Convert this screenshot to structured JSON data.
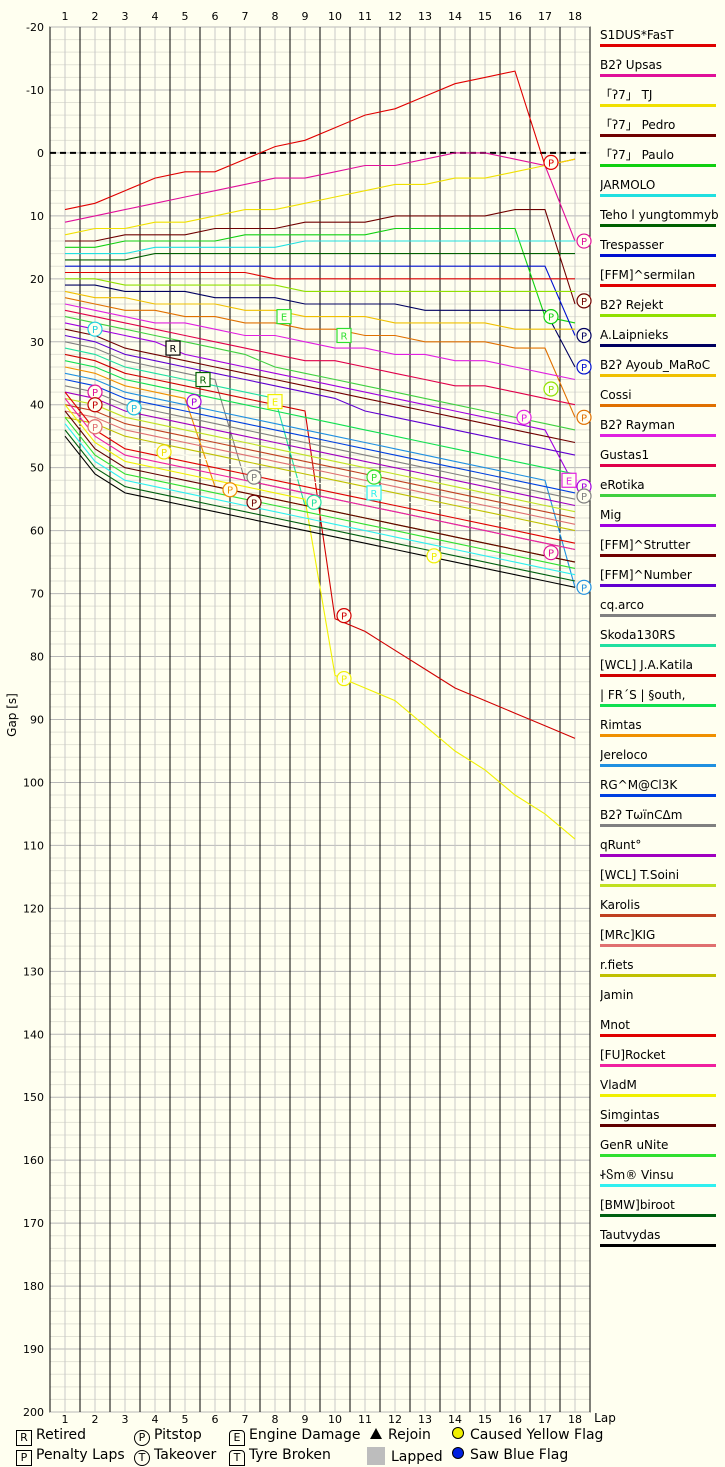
{
  "chart_data": {
    "type": "line",
    "title": "",
    "xlabel": "Lap",
    "ylabel": "Gap [s]",
    "xlim": [
      1,
      18
    ],
    "ylim": [
      -20,
      200
    ],
    "x_ticks": [
      "1",
      "2",
      "3",
      "4",
      "5",
      "6",
      "7",
      "8",
      "9",
      "10",
      "11",
      "12",
      "13",
      "14",
      "15",
      "16",
      "17",
      "18"
    ],
    "y_ticks": [
      "-20",
      "-10",
      "0",
      "10",
      "20",
      "30",
      "40",
      "50",
      "60",
      "70",
      "80",
      "90",
      "100",
      "110",
      "120",
      "130",
      "140",
      "150",
      "160",
      "170",
      "180",
      "190",
      "200"
    ],
    "series": [
      {
        "name": "S1DUS*FasT",
        "color": "#e00000",
        "values": [
          9,
          8,
          6,
          4,
          3,
          3,
          1,
          -1,
          -2,
          -4,
          -6,
          -7,
          -9,
          -11,
          -12,
          -13,
          2,
          1
        ]
      },
      {
        "name": "B2ʔ Upsas",
        "color": "#e0109a",
        "values": [
          11,
          10,
          9,
          8,
          7,
          6,
          5,
          4,
          4,
          3,
          2,
          2,
          1,
          0,
          0,
          1,
          2,
          14
        ]
      },
      {
        "name": "「ʔ7」 TJ",
        "color": "#f0e000",
        "values": [
          13,
          12,
          12,
          11,
          11,
          10,
          9,
          9,
          8,
          7,
          6,
          5,
          5,
          4,
          4,
          3,
          2,
          1
        ]
      },
      {
        "name": "「ʔ7」 Pedro",
        "color": "#700000",
        "values": [
          14,
          14,
          13,
          13,
          13,
          12,
          12,
          12,
          11,
          11,
          11,
          10,
          10,
          10,
          10,
          9,
          9,
          24
        ]
      },
      {
        "name": "「ʔ7」 Paulo",
        "color": "#10d010",
        "values": [
          15,
          15,
          14,
          14,
          14,
          14,
          13,
          13,
          13,
          13,
          13,
          12,
          12,
          12,
          12,
          12,
          26,
          27
        ]
      },
      {
        "name": "JARMOLO",
        "color": "#20e0e0",
        "values": [
          16,
          16,
          16,
          15,
          15,
          15,
          15,
          15,
          14,
          14,
          14,
          14,
          14,
          14,
          14,
          14,
          14,
          14
        ]
      },
      {
        "name": "Teho l yungtommyb",
        "color": "#006000",
        "values": [
          17,
          17,
          17,
          16,
          16,
          16,
          16,
          16,
          16,
          16,
          16,
          16,
          16,
          16,
          16,
          16,
          16,
          16
        ]
      },
      {
        "name": "Trespasser",
        "color": "#0010d0",
        "values": [
          18,
          18,
          18,
          18,
          18,
          18,
          18,
          18,
          18,
          18,
          18,
          18,
          18,
          18,
          18,
          18,
          18,
          29
        ]
      },
      {
        "name": "[FFM]^sermilan",
        "color": "#e00000",
        "values": [
          19,
          19,
          19,
          19,
          19,
          19,
          19,
          20,
          20,
          20,
          20,
          20,
          20,
          20,
          20,
          20,
          20,
          20
        ]
      },
      {
        "name": "B2ʔ Rejekt",
        "color": "#90e000",
        "values": [
          20,
          20,
          21,
          21,
          21,
          21,
          21,
          21,
          22,
          22,
          22,
          22,
          22,
          22,
          22,
          22,
          22,
          22
        ]
      },
      {
        "name": "A.Laipnieks",
        "color": "#000060",
        "values": [
          21,
          21,
          22,
          22,
          22,
          23,
          23,
          23,
          24,
          24,
          24,
          24,
          25,
          25,
          25,
          25,
          25,
          34
        ]
      },
      {
        "name": "B2ʔ Ayoub_MaRoC",
        "color": "#f0c000",
        "values": [
          22,
          23,
          23,
          24,
          24,
          24,
          25,
          25,
          26,
          26,
          26,
          27,
          27,
          27,
          27,
          28,
          28,
          28
        ]
      },
      {
        "name": "Cossi",
        "color": "#e07000",
        "values": [
          23,
          24,
          25,
          25,
          26,
          26,
          27,
          27,
          28,
          28,
          29,
          29,
          30,
          30,
          30,
          31,
          31,
          42
        ]
      },
      {
        "name": "B2ʔ Rayman",
        "color": "#e020e0",
        "values": [
          24,
          25,
          26,
          27,
          27,
          28,
          29,
          29,
          30,
          31,
          31,
          32,
          32,
          33,
          33,
          34,
          35,
          36
        ]
      },
      {
        "name": "Gustas1",
        "color": "#e0004a",
        "values": [
          25,
          26,
          27,
          28,
          29,
          30,
          31,
          32,
          33,
          33,
          34,
          35,
          36,
          37,
          37,
          38,
          39,
          40
        ]
      },
      {
        "name": "eRotika",
        "color": "#40d040",
        "values": [
          26,
          27,
          28,
          29,
          30,
          31,
          32,
          34,
          35,
          36,
          37,
          38,
          39,
          40,
          41,
          42,
          43,
          44
        ]
      },
      {
        "name": "Mig",
        "color": "#a000e0",
        "values": [
          27,
          28,
          29,
          30,
          32,
          33,
          34,
          35,
          36,
          37,
          38,
          39,
          40,
          41,
          42,
          43,
          44,
          53
        ]
      },
      {
        "name": "[FFM]^Strutter",
        "color": "#700000",
        "values": [
          28,
          29,
          31,
          32,
          33,
          34,
          35,
          36,
          37,
          38,
          39,
          40,
          41,
          42,
          43,
          44,
          45,
          46
        ]
      },
      {
        "name": "[FFM]^Number",
        "color": "#6000d0",
        "values": [
          29,
          30,
          32,
          33,
          34,
          35,
          36,
          37,
          38,
          39,
          41,
          42,
          43,
          44,
          45,
          46,
          47,
          48
        ]
      },
      {
        "name": "cq.arco",
        "color": "#808080",
        "values": [
          30,
          31,
          33,
          34,
          35,
          36,
          52,
          53,
          54,
          55,
          56,
          57,
          58,
          59,
          60,
          61,
          62,
          63
        ]
      },
      {
        "name": "Skoda130RS",
        "color": "#20e0a0",
        "values": [
          31,
          32,
          34,
          35,
          36,
          37,
          38,
          39,
          56,
          57,
          58,
          59,
          60,
          61,
          62,
          63,
          64,
          65
        ]
      },
      {
        "name": "[WCL] J.A.Katila",
        "color": "#d00000",
        "values": [
          32,
          33,
          35,
          36,
          37,
          38,
          39,
          40,
          41,
          74,
          76,
          79,
          82,
          85,
          87,
          89,
          91,
          93
        ]
      },
      {
        "name": "| FR´S | §outh,",
        "color": "#10e050",
        "values": [
          33,
          34,
          36,
          37,
          38,
          39,
          40,
          41,
          42,
          43,
          44,
          45,
          46,
          47,
          48,
          49,
          50,
          51
        ]
      },
      {
        "name": "Rimtas",
        "color": "#f09000",
        "values": [
          34,
          35,
          37,
          38,
          39,
          53,
          54,
          55,
          56,
          57,
          58,
          59,
          60,
          61,
          62,
          63,
          64,
          65
        ]
      },
      {
        "name": "Jereloco",
        "color": "#2090e0",
        "values": [
          35,
          36,
          38,
          39,
          40,
          41,
          42,
          43,
          44,
          45,
          46,
          47,
          48,
          49,
          50,
          51,
          52,
          69
        ]
      },
      {
        "name": "RG^M@Cl3K",
        "color": "#0040e0",
        "values": [
          36,
          37,
          39,
          40,
          41,
          42,
          43,
          44,
          45,
          46,
          47,
          48,
          49,
          50,
          51,
          52,
          53,
          54
        ]
      },
      {
        "name": "B2ʔ TωїnCΔm",
        "color": "#808080",
        "values": [
          37,
          38,
          40,
          41,
          42,
          43,
          44,
          45,
          46,
          47,
          48,
          49,
          50,
          51,
          52,
          53,
          54,
          55
        ]
      },
      {
        "name": "qRunt°",
        "color": "#a000c0",
        "values": [
          38,
          39,
          41,
          42,
          43,
          44,
          45,
          46,
          47,
          48,
          49,
          50,
          51,
          52,
          53,
          54,
          55,
          56
        ]
      },
      {
        "name": "[WCL] T.Soini",
        "color": "#c0e020",
        "values": [
          39,
          40,
          42,
          43,
          44,
          45,
          46,
          47,
          48,
          49,
          50,
          51,
          52,
          53,
          54,
          55,
          56,
          57
        ]
      },
      {
        "name": "Karolis",
        "color": "#c04020",
        "values": [
          40,
          41,
          43,
          44,
          45,
          46,
          47,
          48,
          49,
          50,
          51,
          52,
          53,
          54,
          55,
          56,
          57,
          58
        ]
      },
      {
        "name": "[MRc]KIG",
        "color": "#e07070",
        "values": [
          41,
          42,
          44,
          45,
          46,
          47,
          48,
          49,
          50,
          51,
          52,
          53,
          54,
          55,
          56,
          57,
          58,
          59
        ]
      },
      {
        "name": "r.fiets",
        "color": "#c0c000",
        "values": [
          42,
          43,
          45,
          46,
          47,
          48,
          49,
          50,
          51,
          52,
          53,
          54,
          55,
          56,
          57,
          58,
          59,
          60
        ]
      },
      {
        "name": "Jamin",
        "color": "#fffff0",
        "values": [
          43,
          44,
          46,
          47,
          48,
          49,
          50,
          51,
          52,
          53,
          54,
          55,
          56,
          57,
          58,
          59,
          60,
          61
        ]
      },
      {
        "name": "Mnot",
        "color": "#e00000",
        "values": [
          38,
          44,
          47,
          48,
          49,
          50,
          51,
          52,
          53,
          54,
          55,
          56,
          57,
          58,
          59,
          60,
          61,
          62
        ]
      },
      {
        "name": "[FU]Rocket",
        "color": "#f020a0",
        "values": [
          39,
          45,
          48,
          49,
          50,
          51,
          52,
          53,
          54,
          55,
          56,
          57,
          58,
          59,
          60,
          61,
          62,
          63
        ]
      },
      {
        "name": "VladM",
        "color": "#f0f000",
        "values": [
          40,
          46,
          49,
          50,
          51,
          52,
          53,
          54,
          55,
          83,
          85,
          87,
          91,
          95,
          98,
          102,
          105,
          109
        ]
      },
      {
        "name": "Simgintas",
        "color": "#600000",
        "values": [
          41,
          47,
          50,
          51,
          52,
          53,
          54,
          55,
          56,
          57,
          58,
          59,
          60,
          61,
          62,
          63,
          64,
          65
        ]
      },
      {
        "name": "GenR uNite",
        "color": "#30e030",
        "values": [
          42,
          48,
          51,
          52,
          53,
          54,
          55,
          56,
          57,
          58,
          59,
          60,
          61,
          62,
          63,
          64,
          65,
          66
        ]
      },
      {
        "name": "ᏐႽm® Vinsu",
        "color": "#30f0f0",
        "values": [
          43,
          49,
          52,
          53,
          54,
          55,
          56,
          57,
          58,
          59,
          60,
          61,
          62,
          63,
          64,
          65,
          66,
          67
        ]
      },
      {
        "name": "[BMW]biroot",
        "color": "#006010",
        "values": [
          44,
          50,
          53,
          54,
          55,
          56,
          57,
          58,
          59,
          60,
          61,
          62,
          63,
          64,
          65,
          66,
          67,
          68
        ]
      },
      {
        "name": "Tautvydas",
        "color": "#000000",
        "values": [
          45,
          51,
          54,
          55,
          56,
          57,
          58,
          59,
          60,
          61,
          62,
          63,
          64,
          65,
          66,
          67,
          68,
          69
        ]
      }
    ],
    "markers": [
      {
        "type": "P",
        "lap": 2,
        "gap": 28,
        "color": "#20d0e0"
      },
      {
        "type": "P",
        "lap": 2,
        "gap": 38,
        "color": "#e0109a"
      },
      {
        "type": "P",
        "lap": 2,
        "gap": 40,
        "color": "#c00000"
      },
      {
        "type": "P",
        "lap": 2,
        "gap": 43.5,
        "color": "#e07070"
      },
      {
        "type": "P",
        "lap": 3.3,
        "gap": 40.5,
        "color": "#20c0e0"
      },
      {
        "type": "P",
        "lap": 4.3,
        "gap": 47.5,
        "color": "#f0e000"
      },
      {
        "type": "P",
        "lap": 5.3,
        "gap": 39.5,
        "color": "#a000e0"
      },
      {
        "type": "P",
        "lap": 6.5,
        "gap": 53.5,
        "color": "#f09000"
      },
      {
        "type": "P",
        "lap": 7.3,
        "gap": 51.5,
        "color": "#808080"
      },
      {
        "type": "P",
        "lap": 7.3,
        "gap": 55.5,
        "color": "#700000"
      },
      {
        "type": "P",
        "lap": 9.3,
        "gap": 55.5,
        "color": "#20e0a0"
      },
      {
        "type": "P",
        "lap": 10.3,
        "gap": 73.5,
        "color": "#d00000"
      },
      {
        "type": "P",
        "lap": 10.3,
        "gap": 83.5,
        "color": "#f0f000"
      },
      {
        "type": "P",
        "lap": 11.3,
        "gap": 51.5,
        "color": "#30e030"
      },
      {
        "type": "P",
        "lap": 13.3,
        "gap": 64,
        "color": "#f0f000"
      },
      {
        "type": "P",
        "lap": 16.3,
        "gap": 42,
        "color": "#e020e0"
      },
      {
        "type": "P",
        "lap": 17.2,
        "gap": 1.5,
        "color": "#e00000"
      },
      {
        "type": "P",
        "lap": 17.2,
        "gap": 26,
        "color": "#10d010"
      },
      {
        "type": "P",
        "lap": 17.2,
        "gap": 37.5,
        "color": "#90e000"
      },
      {
        "type": "P",
        "lap": 17.2,
        "gap": 63.5,
        "color": "#e0109a"
      },
      {
        "type": "P",
        "lap": 18.3,
        "gap": 14,
        "color": "#e0109a"
      },
      {
        "type": "P",
        "lap": 18.3,
        "gap": 23.5,
        "color": "#700000"
      },
      {
        "type": "P",
        "lap": 18.3,
        "gap": 29,
        "color": "#000060"
      },
      {
        "type": "P",
        "lap": 18.3,
        "gap": 34,
        "color": "#0010d0"
      },
      {
        "type": "P",
        "lap": 18.3,
        "gap": 42,
        "color": "#e07000"
      },
      {
        "type": "P",
        "lap": 18.3,
        "gap": 53,
        "color": "#a000e0"
      },
      {
        "type": "P",
        "lap": 18.3,
        "gap": 54.5,
        "color": "#808080"
      },
      {
        "type": "P",
        "lap": 18.3,
        "gap": 69,
        "color": "#2090e0"
      },
      {
        "type": "R",
        "lap": 4.6,
        "gap": 31,
        "color": "#000000"
      },
      {
        "type": "R",
        "lap": 5.6,
        "gap": 36,
        "color": "#006000"
      },
      {
        "type": "R",
        "lap": 10.3,
        "gap": 29,
        "color": "#30e030"
      },
      {
        "type": "R",
        "lap": 11.3,
        "gap": 54,
        "color": "#30f0f0"
      },
      {
        "type": "E",
        "lap": 8.3,
        "gap": 26,
        "color": "#30e030"
      },
      {
        "type": "E",
        "lap": 8,
        "gap": 39.5,
        "color": "#f0f000"
      },
      {
        "type": "E",
        "lap": 17.8,
        "gap": 52,
        "color": "#e020e0"
      }
    ]
  },
  "legend_key": {
    "retired": "Retired",
    "penalty_laps": "Penalty Laps",
    "pitstop": "Pitstop",
    "takeover": "Takeover",
    "engine_damage": "Engine Damage",
    "tyre_broken": "Tyre Broken",
    "rejoin": "Rejoin",
    "lapped": "Lapped",
    "caused_yellow_flag": "Caused Yellow Flag",
    "saw_blue_flag": "Saw Blue Flag",
    "sym_r": "R",
    "sym_p": "P",
    "sym_e": "E",
    "sym_t": "T"
  },
  "colors": {
    "background": "#fffff0",
    "yellow_flag": "#f0f000",
    "blue_flag": "#0020e0",
    "lapped": "#bdbdbd"
  }
}
